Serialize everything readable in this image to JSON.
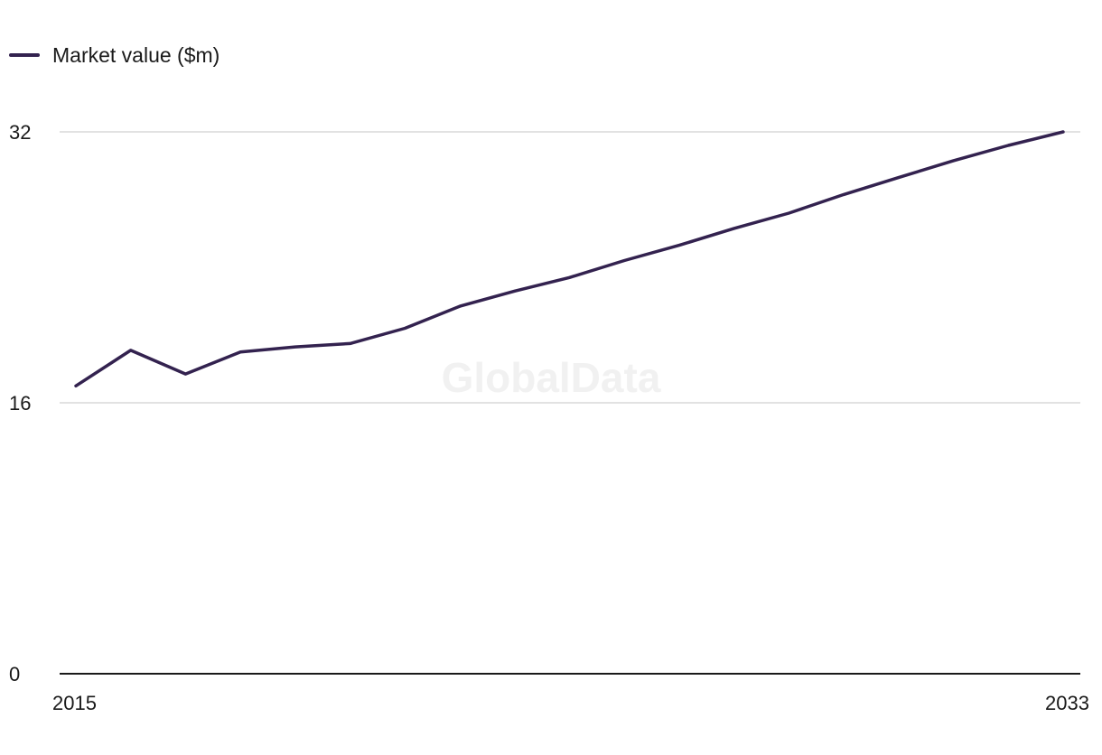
{
  "colors": {
    "series": "#33224f",
    "grid": "#d9d9d9",
    "axis": "#1a1a1a",
    "watermark": "#f1f1f1"
  },
  "watermark": "GlobalData",
  "chart_data": {
    "type": "line",
    "title": "",
    "xlabel": "",
    "ylabel": "",
    "x": [
      2015,
      2016,
      2017,
      2018,
      2019,
      2020,
      2021,
      2022,
      2023,
      2024,
      2025,
      2026,
      2027,
      2028,
      2029,
      2030,
      2031,
      2032,
      2033
    ],
    "series": [
      {
        "name": "Market value ($m)",
        "values": [
          17.0,
          19.1,
          17.7,
          19.0,
          19.3,
          19.5,
          20.4,
          21.7,
          22.6,
          23.4,
          24.4,
          25.3,
          26.3,
          27.2,
          28.3,
          29.3,
          30.3,
          31.2,
          32.0
        ]
      }
    ],
    "ylim": [
      0,
      32
    ],
    "yticks": [
      "0",
      "16",
      "32"
    ],
    "xticks": [
      "2015",
      "2033"
    ],
    "legend": "top-left",
    "grid": true
  }
}
